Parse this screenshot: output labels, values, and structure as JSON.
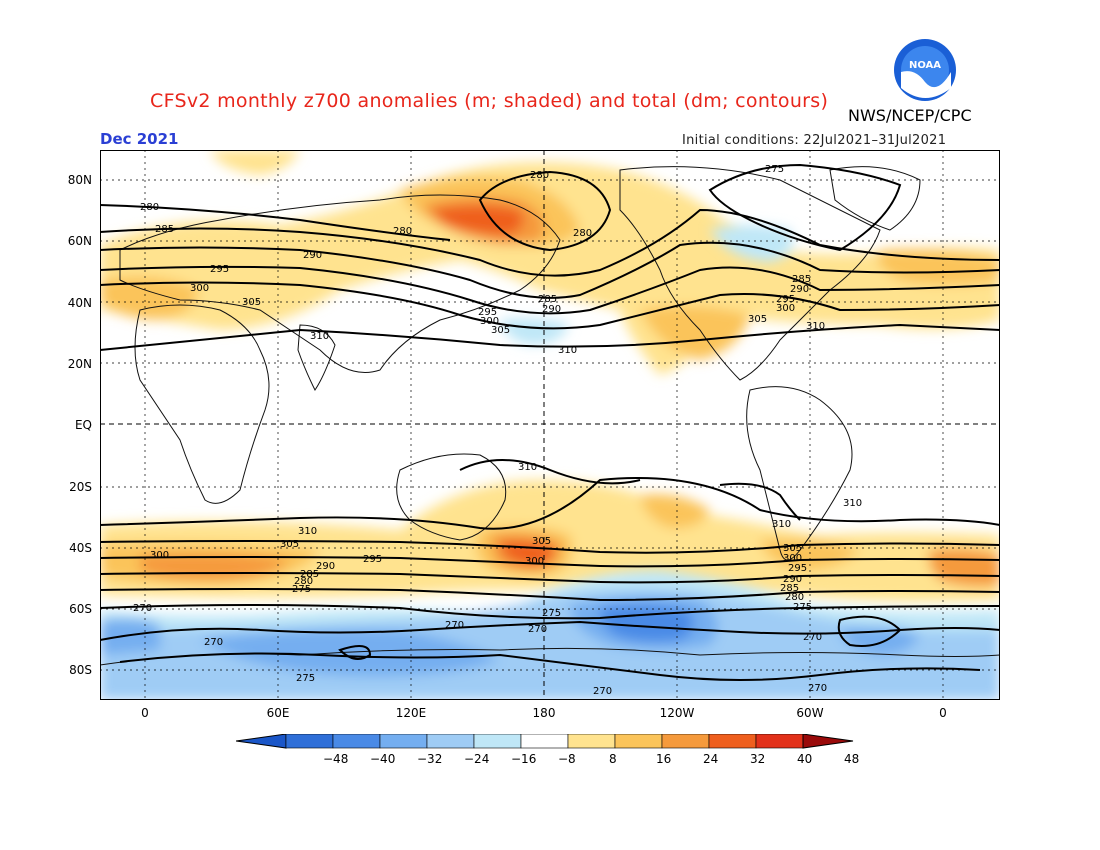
{
  "title": "CFSv2 monthly z700 anomalies (m; shaded) and total (dm; contours)",
  "agency": "NWS/NCEP/CPC",
  "period": "Dec 2021",
  "initial_conditions": "Initial conditions: 22Jul2021–31Jul2021",
  "logo_text": "NOAA",
  "lat_labels": [
    "80N",
    "60N",
    "40N",
    "20N",
    "EQ",
    "20S",
    "40S",
    "60S",
    "80S"
  ],
  "lon_labels": [
    "0",
    "60E",
    "120E",
    "180",
    "120W",
    "60W",
    "0"
  ],
  "colorbar": {
    "labels": [
      "−48",
      "−40",
      "−32",
      "−24",
      "−16",
      "−8",
      "8",
      "16",
      "24",
      "32",
      "40",
      "48"
    ],
    "colors": [
      "#2f6fd8",
      "#4a8ae6",
      "#74aef0",
      "#9fccf5",
      "#bfe7f7",
      "#ffffff",
      "#ffe38f",
      "#fbc45a",
      "#f59a3c",
      "#ef5f1e",
      "#e2311a",
      "#b81010"
    ],
    "low_color": "#1a56c8",
    "high_color": "#9a0a0a"
  },
  "contour_labels": [
    "270",
    "275",
    "280",
    "285",
    "290",
    "295",
    "300",
    "305",
    "310"
  ]
}
